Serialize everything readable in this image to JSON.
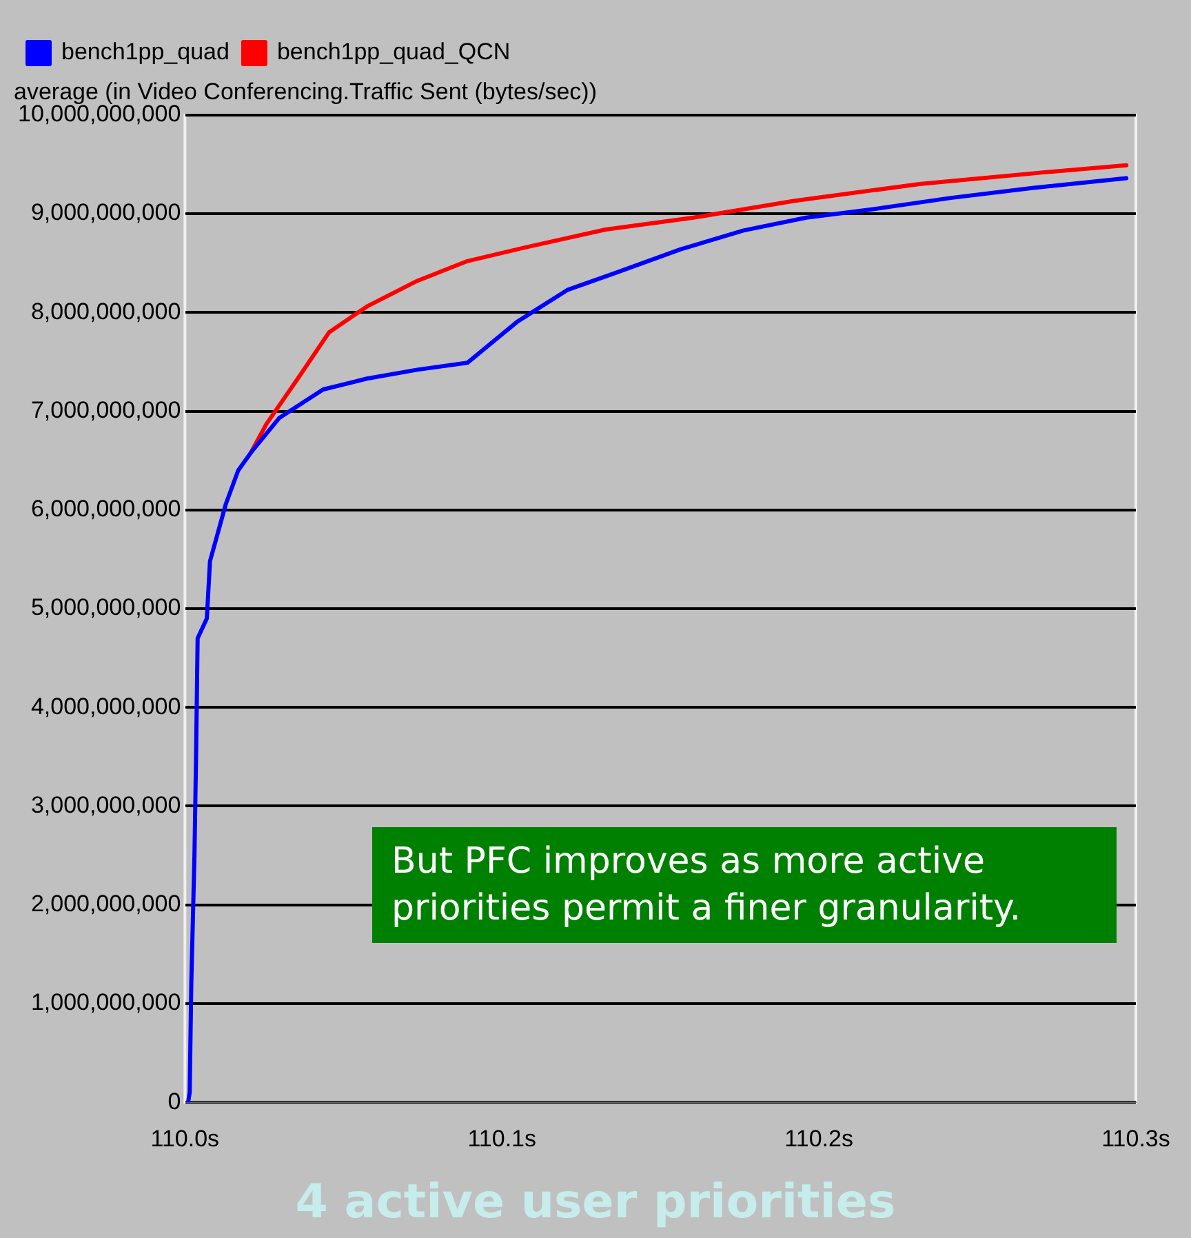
{
  "chart_data": {
    "type": "line",
    "title": "average (in Video Conferencing.Traffic Sent (bytes/sec))",
    "series": [
      {
        "name": "bench1pp_quad",
        "color": "#0000ff",
        "x": [
          110.001,
          110.0015,
          110.002,
          110.003,
          110.0035,
          110.004,
          110.0069,
          110.0079,
          110.0129,
          110.0168,
          110.0208,
          110.0297,
          110.0436,
          110.0574,
          110.0733,
          110.0891,
          110.105,
          110.1208,
          110.1366,
          110.1564,
          110.1762,
          110.196,
          110.2158,
          110.2416,
          110.2673,
          110.297
        ],
        "values": [
          0,
          100000000,
          1200000000,
          2500000000,
          3500000000,
          4700000000,
          4900000000,
          5480000000,
          6060000000,
          6400000000,
          6580000000,
          6930000000,
          7220000000,
          7330000000,
          7420000000,
          7490000000,
          7910000000,
          8230000000,
          8410000000,
          8640000000,
          8830000000,
          8960000000,
          9040000000,
          9160000000,
          9260000000,
          9360000000
        ]
      },
      {
        "name": "bench1pp_quad_QCN",
        "color": "#ff0000",
        "x": [
          110.0208,
          110.0257,
          110.0356,
          110.0455,
          110.0574,
          110.0733,
          110.0891,
          110.1089,
          110.1327,
          110.1604,
          110.1921,
          110.2317,
          110.2713,
          110.297
        ],
        "values": [
          6580000000,
          6870000000,
          7330000000,
          7800000000,
          8060000000,
          8320000000,
          8520000000,
          8670000000,
          8840000000,
          8960000000,
          9130000000,
          9300000000,
          9420000000,
          9490000000
        ]
      }
    ],
    "xlim": [
      110.0,
      110.3
    ],
    "xticks": [
      {
        "value": 110.0,
        "label": "110.0s"
      },
      {
        "value": 110.1,
        "label": "110.1s"
      },
      {
        "value": 110.2,
        "label": "110.2s"
      },
      {
        "value": 110.3,
        "label": "110.3s"
      }
    ],
    "ylim": [
      0,
      10000000000
    ],
    "yticks": [
      {
        "value": 0,
        "label": "0"
      },
      {
        "value": 1000000000,
        "label": "1,000,000,000"
      },
      {
        "value": 2000000000,
        "label": "2,000,000,000"
      },
      {
        "value": 3000000000,
        "label": "3,000,000,000"
      },
      {
        "value": 4000000000,
        "label": "4,000,000,000"
      },
      {
        "value": 5000000000,
        "label": "5,000,000,000"
      },
      {
        "value": 6000000000,
        "label": "6,000,000,000"
      },
      {
        "value": 7000000000,
        "label": "7,000,000,000"
      },
      {
        "value": 8000000000,
        "label": "8,000,000,000"
      },
      {
        "value": 9000000000,
        "label": "9,000,000,000"
      },
      {
        "value": 10000000000,
        "label": "10,000,000,000"
      }
    ],
    "grid": "y",
    "legend": "top",
    "marker": "none",
    "line_style": "solid",
    "annotations": [
      "But PFC improves as more active priorities permit a finer granularity.",
      "4 active user priorities"
    ]
  }
}
